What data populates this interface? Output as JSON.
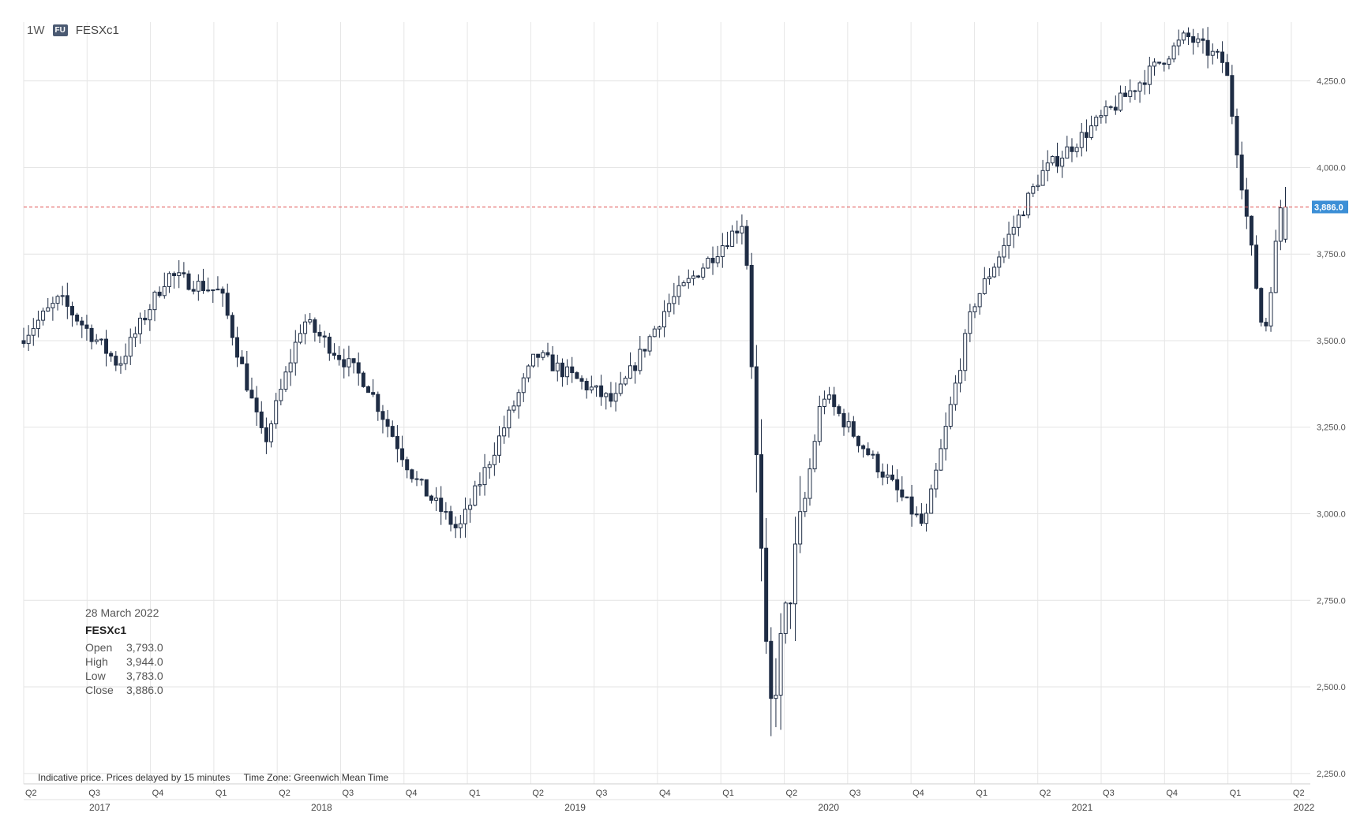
{
  "header": {
    "interval": "1W",
    "badge": "FU",
    "symbol": "FESXc1"
  },
  "info_box": {
    "date": "28 March 2022",
    "symbol": "FESXc1",
    "rows": [
      {
        "label": "Open",
        "value": "3,793.0"
      },
      {
        "label": "High",
        "value": "3,944.0"
      },
      {
        "label": "Low",
        "value": "3,783.0"
      },
      {
        "label": "Close",
        "value": "3,886.0"
      }
    ]
  },
  "footer": {
    "disclaimer": "Indicative price. Prices delayed by 15 minutes",
    "timezone": "Time Zone: Greenwich Mean Time"
  },
  "colors": {
    "up": "#ffffff",
    "down": "#1f2d45",
    "outline": "#1f2d45",
    "last_price": "#3c8fd6",
    "ref_line": "#e05050"
  },
  "chart_data": {
    "type": "candlestick",
    "title": "",
    "interval": "1W",
    "grid": true,
    "y_axis": {
      "position": "right",
      "ticks": [
        2250,
        2500,
        2750,
        3000,
        3250,
        3500,
        3750,
        4000,
        4250
      ],
      "tick_labels": [
        "2,250.0",
        "2,500.0",
        "2,750.0",
        "3,000.0",
        "3,250.0",
        "3,500.0",
        "3,750.0",
        "4,000.0",
        "4,250.0"
      ],
      "ylim": [
        2220,
        4420
      ]
    },
    "x_axis": {
      "quarters": [
        "Q2",
        "Q3",
        "Q4",
        "Q1",
        "Q2",
        "Q3",
        "Q4",
        "Q1",
        "Q2",
        "Q3",
        "Q4",
        "Q1",
        "Q2",
        "Q3",
        "Q4",
        "Q1",
        "Q2",
        "Q3",
        "Q4",
        "Q1",
        "Q2"
      ],
      "years": [
        "2017",
        "2018",
        "2019",
        "2020",
        "2021",
        "2022"
      ],
      "start": "2017-04-03",
      "end": "2022-04-01"
    },
    "last_price": {
      "value": 3886,
      "label": "3,886.0"
    },
    "key_points": [
      {
        "date": "2017-04-03",
        "close": 3500
      },
      {
        "date": "2017-06-01",
        "close": 3620
      },
      {
        "date": "2017-08-25",
        "close": 3430
      },
      {
        "date": "2017-11-03",
        "close": 3690
      },
      {
        "date": "2018-01-19",
        "close": 3640
      },
      {
        "date": "2018-03-23",
        "close": 3200
      },
      {
        "date": "2018-05-18",
        "close": 3560
      },
      {
        "date": "2018-08-17",
        "close": 3380
      },
      {
        "date": "2018-10-26",
        "close": 3100
      },
      {
        "date": "2018-12-28",
        "close": 2950
      },
      {
        "date": "2019-04-19",
        "close": 3460
      },
      {
        "date": "2019-08-09",
        "close": 3320
      },
      {
        "date": "2019-10-25",
        "close": 3600
      },
      {
        "date": "2020-02-14",
        "close": 3850
      },
      {
        "date": "2020-03-20",
        "close": 2400
      },
      {
        "date": "2020-06-05",
        "close": 3350
      },
      {
        "date": "2020-10-30",
        "close": 2960
      },
      {
        "date": "2021-01-08",
        "close": 3600
      },
      {
        "date": "2021-04-16",
        "close": 3980
      },
      {
        "date": "2021-08-13",
        "close": 4200
      },
      {
        "date": "2021-11-12",
        "close": 4380
      },
      {
        "date": "2022-01-07",
        "close": 4300
      },
      {
        "date": "2022-03-04",
        "close": 3500
      },
      {
        "date": "2022-03-28",
        "close": 3886
      }
    ]
  }
}
